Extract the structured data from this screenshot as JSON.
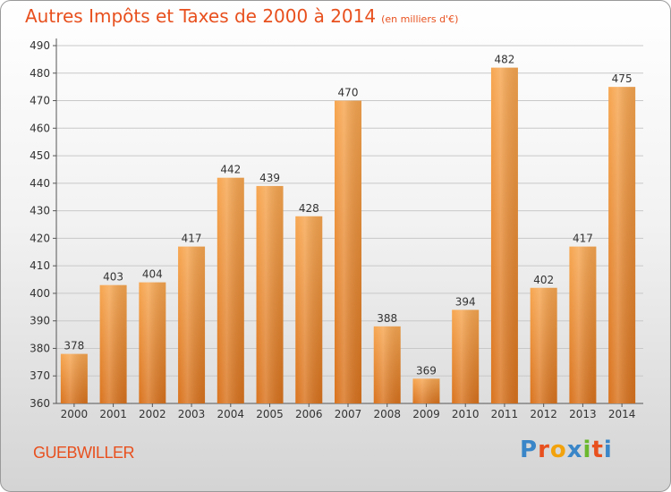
{
  "header": {
    "title": "Autres Impôts et Taxes de 2000 à 2014",
    "subtitle": "(en milliers d'€)"
  },
  "footer": {
    "city": "GUEBWILLER",
    "logo_text": "Proxiti"
  },
  "colors": {
    "title": "#e8501e",
    "bar_light": "#f7a650",
    "bar_dark": "#d9731e",
    "grid": "#c8c8c8",
    "logo_letters": [
      "#3a86c8",
      "#e8501e",
      "#f2a20c",
      "#3a86c8",
      "#6ab82e",
      "#e8501e",
      "#3a86c8"
    ]
  },
  "chart_data": {
    "type": "bar",
    "title": "Autres Impôts et Taxes de 2000 à 2014",
    "subtitle": "(en milliers d'€)",
    "xlabel": "",
    "ylabel": "",
    "categories": [
      "2000",
      "2001",
      "2002",
      "2003",
      "2004",
      "2005",
      "2006",
      "2007",
      "2008",
      "2009",
      "2010",
      "2011",
      "2012",
      "2013",
      "2014"
    ],
    "values": [
      378,
      403,
      404,
      417,
      442,
      439,
      428,
      470,
      388,
      369,
      394,
      482,
      402,
      417,
      475
    ],
    "ylim": [
      360,
      490
    ],
    "yticks": [
      360,
      370,
      380,
      390,
      400,
      410,
      420,
      430,
      440,
      450,
      460,
      470,
      480,
      490
    ],
    "grid": true,
    "data_labels": true
  }
}
